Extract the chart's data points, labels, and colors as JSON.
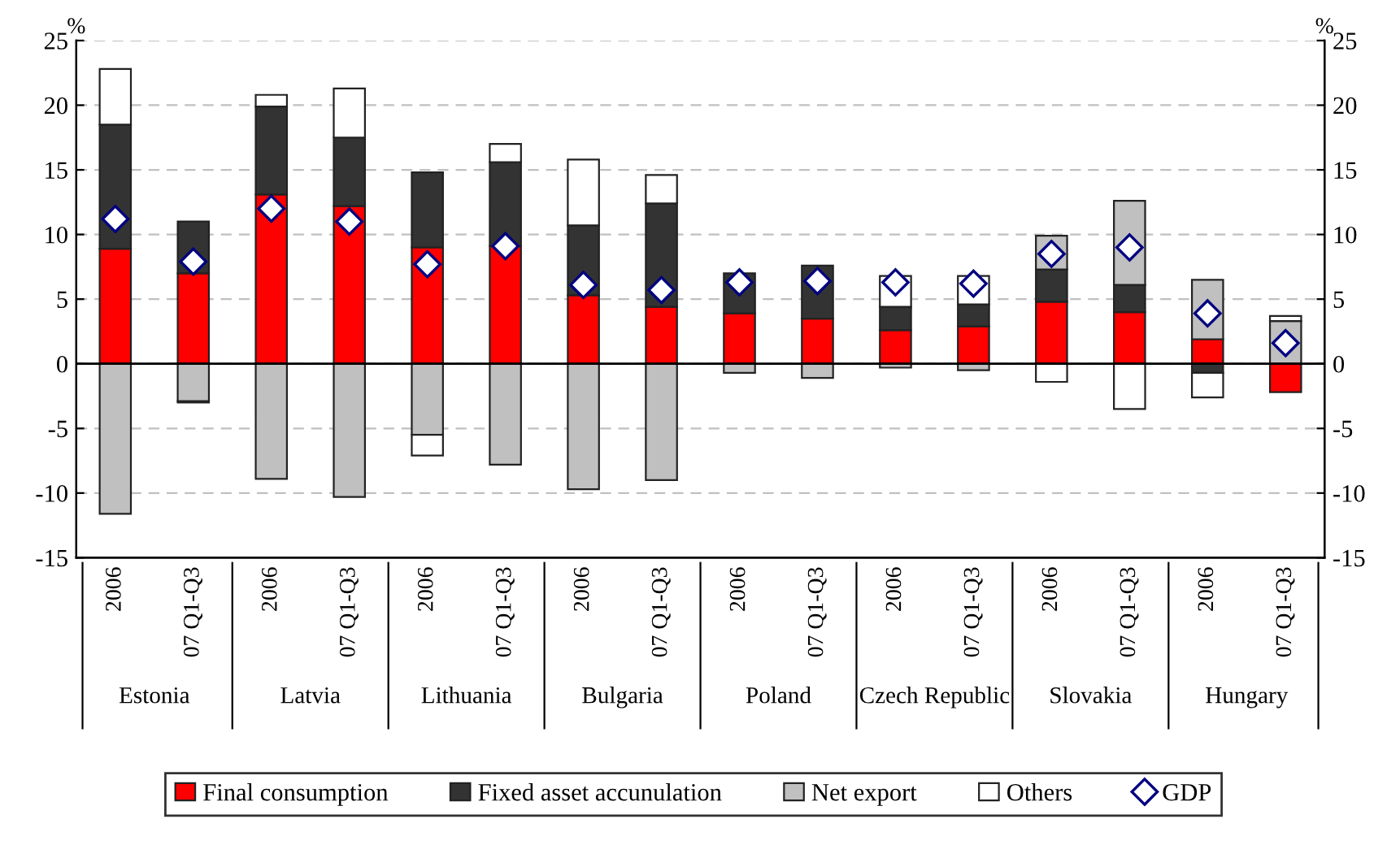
{
  "chart_data": {
    "type": "bar",
    "stacked": true,
    "ylabel": "%",
    "y2label": "%",
    "categories": [
      "2006",
      "07 Q1-Q3",
      "2006",
      "07 Q1-Q3",
      "2006",
      "07 Q1-Q3",
      "2006",
      "07 Q1-Q3",
      "2006",
      "07 Q1-Q3",
      "2006",
      "07 Q1-Q3",
      "2006",
      "07 Q1-Q3",
      "2006",
      "07 Q1-Q3"
    ],
    "annotations": [
      "Estonia",
      "Latvia",
      "Lithuania",
      "Bulgaria",
      "Poland",
      "Czech Republic",
      "Slovakia",
      "Hungary"
    ],
    "series": [
      {
        "name": "Final consumption",
        "color": "#ff0000",
        "values": [
          8.9,
          7.0,
          13.1,
          12.2,
          9.0,
          9.1,
          5.3,
          4.4,
          3.9,
          3.5,
          2.6,
          2.9,
          4.8,
          4.0,
          1.9,
          -2.2
        ]
      },
      {
        "name": "Fixed asset accunulation",
        "color": "#333333",
        "values": [
          9.6,
          4.0,
          6.8,
          5.3,
          5.8,
          6.5,
          5.4,
          8.0,
          3.1,
          4.1,
          1.8,
          1.7,
          2.5,
          2.1,
          -0.7,
          0
        ]
      },
      {
        "name": "Net export",
        "color": "#c0c0c0",
        "values": [
          -11.6,
          -2.9,
          -8.9,
          -10.3,
          -5.5,
          -7.8,
          -9.7,
          -9.0,
          -0.7,
          -1.1,
          -0.3,
          -0.5,
          2.6,
          6.5,
          4.6,
          3.3
        ]
      },
      {
        "name": "Others",
        "color": "#ffffff",
        "values": [
          4.3,
          -0.1,
          0.9,
          3.8,
          -1.6,
          1.4,
          5.1,
          2.2,
          0,
          0,
          2.4,
          2.2,
          -1.4,
          -3.5,
          -1.9,
          0.4
        ]
      },
      {
        "name": "GDP",
        "type": "scatter",
        "marker": "diamond",
        "color": "#000080",
        "values": [
          11.2,
          7.9,
          12.0,
          11.0,
          7.7,
          9.1,
          6.1,
          5.7,
          6.3,
          6.4,
          6.3,
          6.2,
          8.5,
          9.0,
          3.9,
          1.6
        ]
      }
    ],
    "ylim": [
      -15,
      25
    ],
    "yticks": [
      -15,
      -10,
      -5,
      0,
      5,
      10,
      15,
      20,
      25
    ],
    "y2lim": [
      -15,
      25
    ],
    "y2ticks": [
      -15,
      -10,
      -5,
      0,
      5,
      10,
      15,
      20,
      25
    ],
    "grid": "y",
    "legend": "bottom"
  }
}
